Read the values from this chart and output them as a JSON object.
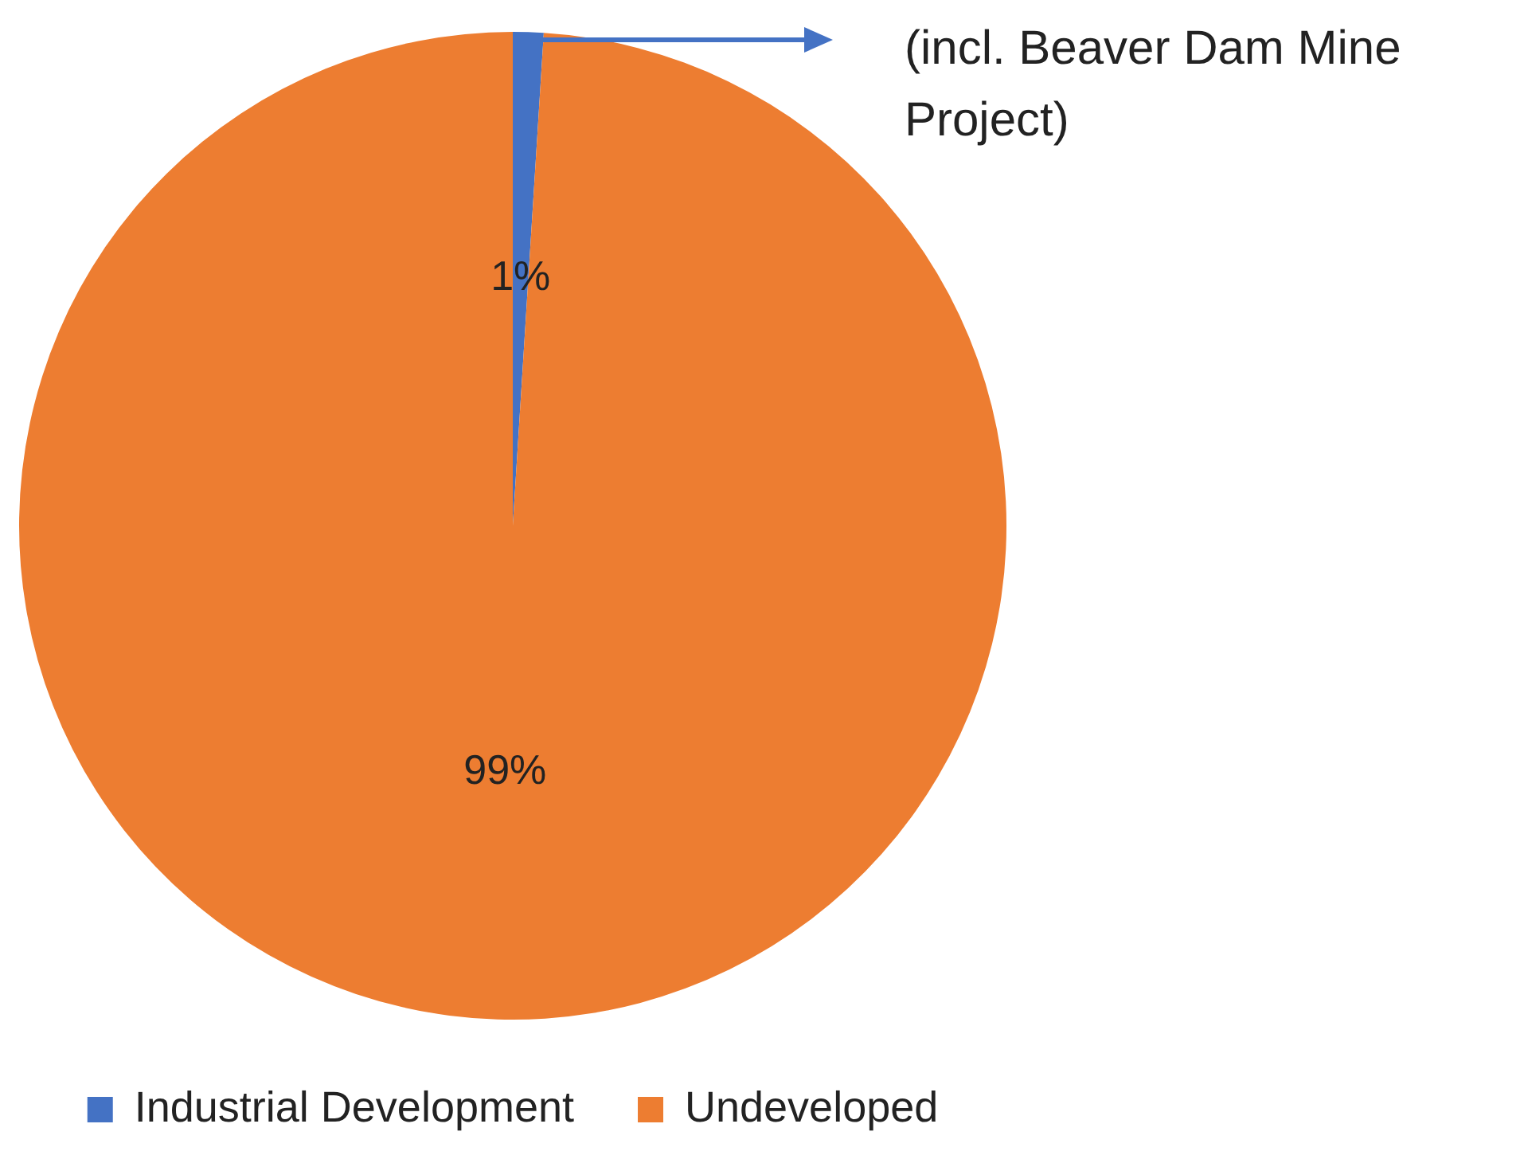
{
  "chart_data": {
    "type": "pie",
    "categories": [
      "Industrial Development",
      "Undeveloped"
    ],
    "values": [
      1,
      99
    ],
    "colors": [
      "#4472c4",
      "#ed7d31"
    ],
    "value_labels": [
      "1%",
      "99%"
    ],
    "legend": "bottom",
    "annotations": [
      "(incl. Beaver Dam Mine Project)"
    ]
  }
}
